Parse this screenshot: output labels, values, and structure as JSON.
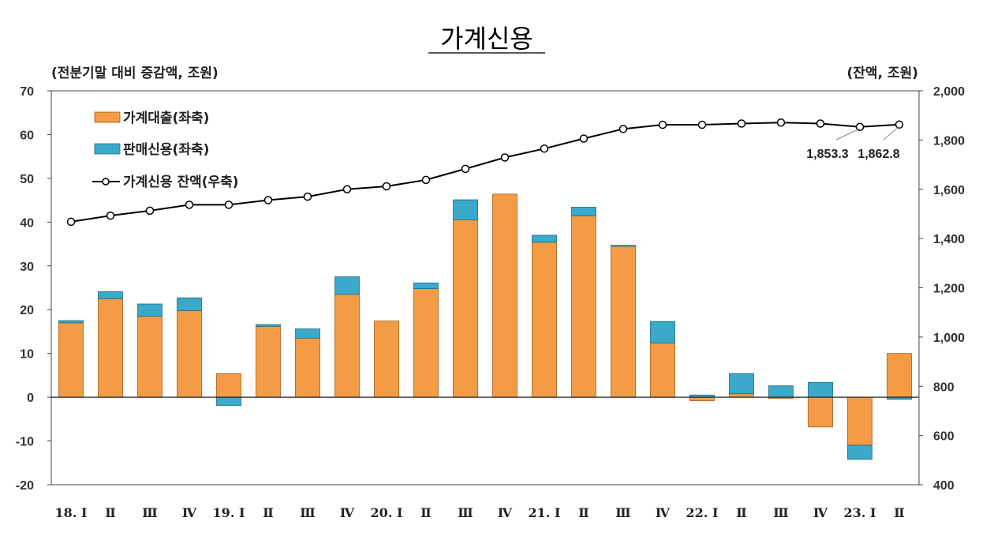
{
  "chart_data": {
    "type": "bar",
    "title": "가계신용",
    "left_unit": "(전분기말 대비 증감액, 조원)",
    "right_unit": "(잔액, 조원)",
    "categories": [
      "18. Ⅰ",
      "Ⅱ",
      "Ⅲ",
      "Ⅳ",
      "19. Ⅰ",
      "Ⅱ",
      "Ⅲ",
      "Ⅳ",
      "20. Ⅰ",
      "Ⅱ",
      "Ⅲ",
      "Ⅳ",
      "21. Ⅰ",
      "Ⅱ",
      "Ⅲ",
      "Ⅳ",
      "22. Ⅰ",
      "Ⅱ",
      "Ⅲ",
      "Ⅳ",
      "23. Ⅰ",
      "Ⅱ"
    ],
    "ylim_left": [
      -20,
      70
    ],
    "yticks_left": [
      "-20",
      "-10",
      "0",
      "10",
      "20",
      "30",
      "40",
      "50",
      "60",
      "70"
    ],
    "ylim_right": [
      400,
      2000
    ],
    "yticks_right": [
      "400",
      "600",
      "800",
      "1,000",
      "1,200",
      "1,400",
      "1,600",
      "1,800",
      "2,000"
    ],
    "grid": false,
    "legend_position": "top-left",
    "series": [
      {
        "name": "가계대출(좌축)",
        "kind": "bar",
        "axis": "left",
        "color": "#F39C45",
        "values": [
          17.0,
          22.5,
          18.5,
          19.8,
          5.4,
          16.2,
          13.5,
          23.5,
          17.4,
          24.8,
          40.5,
          46.4,
          35.4,
          41.4,
          34.5,
          12.4,
          -0.8,
          0.8,
          -0.3,
          -6.8,
          -11.0,
          10.0
        ]
      },
      {
        "name": "판매신용(좌축)",
        "kind": "bar",
        "axis": "left",
        "color": "#3BA9C9",
        "values": [
          0.5,
          1.6,
          2.8,
          2.9,
          -1.9,
          0.4,
          2.1,
          4.0,
          0.0,
          1.3,
          4.6,
          0.0,
          1.6,
          2.0,
          0.2,
          4.9,
          0.5,
          4.6,
          2.6,
          3.4,
          -3.2,
          -0.5
        ]
      },
      {
        "name": "가계신용 잔액(우축)",
        "kind": "line",
        "axis": "right",
        "color": "#000000",
        "values": [
          1468,
          1493,
          1513,
          1537,
          1537,
          1556,
          1570,
          1600,
          1612,
          1638,
          1683,
          1729,
          1765,
          1806,
          1845,
          1862,
          1862,
          1867,
          1871,
          1867,
          1853.3,
          1862.8
        ]
      }
    ],
    "annotations": [
      "1,853.3",
      "1,862.8"
    ]
  }
}
